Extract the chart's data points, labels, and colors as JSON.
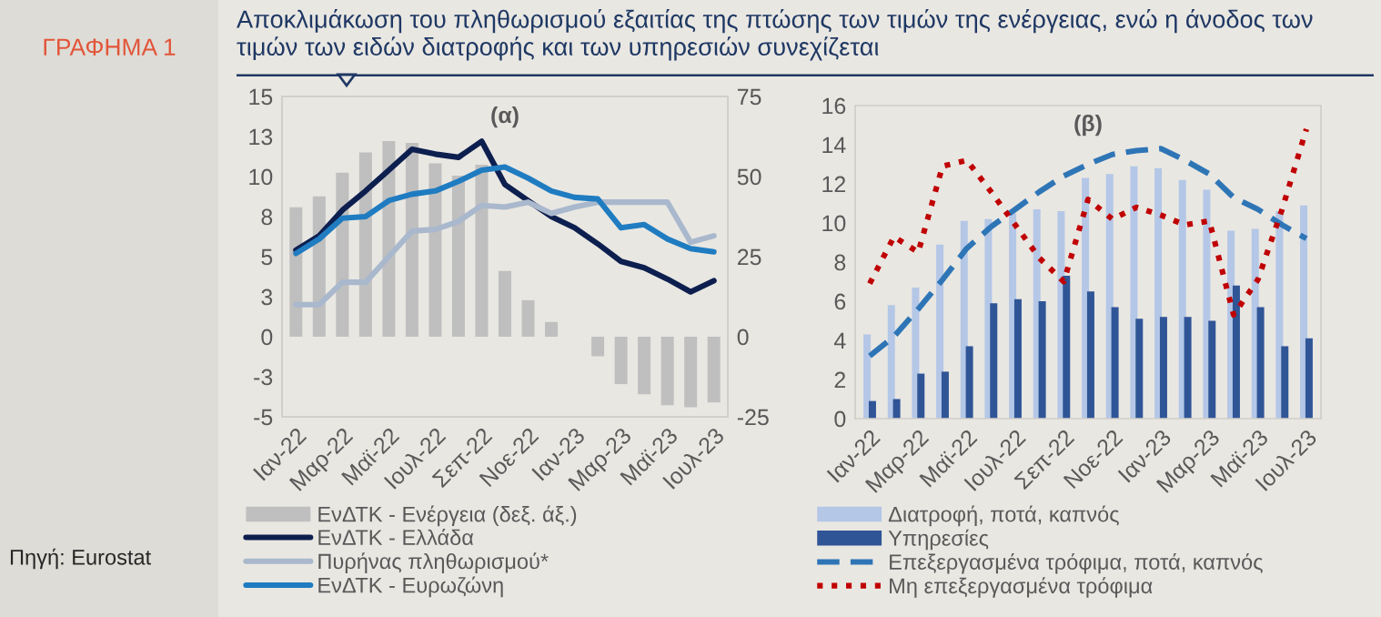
{
  "chart_data": [
    {
      "type": "line",
      "title": "(α)",
      "annotations": [
        "ΓΡΑΦΗΜΑ 1",
        "Αποκλιμάκωση του πληθωρισμού εξαιτίας της πτώσης των τιμών της ενέργειας, ενώ η άνοδος των τιμών των ειδών διατροφής και των υπηρεσιών συνεχίζεται",
        "Πηγή: Eurostat"
      ],
      "categories": [
        "Ιαν-22",
        null,
        "Μαρ-22",
        null,
        "Μαϊ-22",
        null,
        "Ιουλ-22",
        null,
        "Σεπ-22",
        null,
        "Νοε-22",
        null,
        "Ιαν-23",
        null,
        "Μαρ-23",
        null,
        "Μαϊ-23",
        null,
        "Ιουλ-23"
      ],
      "series": [
        {
          "name": "ΕνΔΤΚ - Ενέργεια (δεξ. άξ.)",
          "type": "bar",
          "axis": "y2",
          "color": "#bfbfbf",
          "values": [
            40.4,
            43.8,
            51.2,
            57.5,
            61.1,
            60.5,
            54.1,
            50.3,
            53.7,
            20.5,
            11.4,
            4.6,
            null,
            -6.1,
            -14.8,
            -18.0,
            -21.4,
            -22.0,
            -20.5
          ]
        },
        {
          "name": "ΕνΔΤΚ - Ελλάδα",
          "color": "#0d1f4f",
          "values": [
            5.4,
            6.3,
            7.9,
            9.1,
            10.4,
            11.7,
            11.4,
            11.2,
            12.2,
            9.5,
            8.5,
            7.5,
            6.8,
            5.8,
            4.7,
            4.3,
            3.6,
            2.8,
            3.5
          ]
        },
        {
          "name": "Πυρήνας πληθωρισμού*",
          "color": "#a9b8cc",
          "values": [
            2.0,
            2.0,
            3.4,
            3.4,
            5.0,
            6.6,
            6.7,
            7.2,
            8.2,
            8.1,
            8.4,
            7.7,
            8.1,
            8.4,
            8.4,
            8.4,
            8.4,
            5.9,
            6.3
          ]
        },
        {
          "name": "ΕνΔΤΚ - Ευρωζώνη",
          "color": "#1f7cc1",
          "values": [
            5.2,
            6.1,
            7.4,
            7.5,
            8.5,
            8.9,
            9.1,
            9.7,
            10.4,
            10.6,
            9.9,
            9.1,
            8.7,
            8.6,
            6.8,
            7.0,
            6.1,
            5.5,
            5.3
          ]
        }
      ],
      "ylim": [
        -5,
        15
      ],
      "yticks": [
        {
          "value": -5,
          "label": "-5"
        },
        {
          "value": -2.5,
          "label": "-3"
        },
        0,
        {
          "value": 2.5,
          "label": "3"
        },
        5,
        {
          "value": 7.5,
          "label": "8"
        },
        10,
        {
          "value": 12.5,
          "label": "13"
        },
        15
      ],
      "y2lim": [
        -25,
        75
      ],
      "y2ticks": [
        -25,
        0,
        25,
        50,
        75
      ],
      "grid": false,
      "legend": "bottom",
      "line_style": "solid",
      "marker": "none"
    },
    {
      "type": "bar",
      "title": "(β)",
      "categories": [
        "Ιαν-22",
        null,
        "Μαρ-22",
        null,
        "Μαϊ-22",
        null,
        "Ιουλ-22",
        null,
        "Σεπ-22",
        null,
        "Νοε-22",
        null,
        "Ιαν-23",
        null,
        "Μαρ-23",
        null,
        "Μαϊ-23",
        null,
        "Ιουλ-23"
      ],
      "series": [
        {
          "name": "Διατροφή, ποτά, καπνός",
          "color": "#b4c7e7",
          "values": [
            4.3,
            5.8,
            6.7,
            8.9,
            10.1,
            10.2,
            10.5,
            10.7,
            10.6,
            12.3,
            12.5,
            12.9,
            12.8,
            12.2,
            11.7,
            9.6,
            9.7,
            10.6,
            10.9
          ]
        },
        {
          "name": "Υπηρεσίες",
          "color": "#2f5597",
          "values": [
            0.9,
            1.0,
            2.3,
            2.4,
            3.7,
            5.9,
            6.1,
            6.0,
            7.3,
            6.5,
            5.7,
            5.1,
            5.2,
            5.2,
            5.0,
            6.8,
            5.7,
            3.7,
            4.1
          ]
        },
        {
          "name": "Επεξεργασμένα τρόφιμα, ποτά, καπνός",
          "type": "line",
          "line_style": "dashed",
          "color": "#2e75b6",
          "values": [
            3.2,
            4.2,
            5.6,
            7.1,
            8.7,
            9.8,
            10.7,
            11.6,
            12.4,
            13.0,
            13.5,
            13.7,
            13.8,
            13.2,
            12.5,
            11.3,
            10.7,
            9.9,
            9.2
          ]
        },
        {
          "name": "Μη επεξεργασμένα τρόφιμα",
          "type": "line",
          "line_style": "dotted",
          "color": "#c00000",
          "values": [
            6.9,
            9.3,
            8.5,
            12.9,
            13.2,
            11.6,
            9.9,
            8.2,
            7.0,
            11.2,
            10.2,
            10.8,
            10.4,
            9.9,
            10.1,
            5.3,
            7.1,
            10.7,
            14.8
          ]
        }
      ],
      "ylim": [
        0,
        16
      ],
      "yticks": [
        0,
        2,
        4,
        6,
        8,
        10,
        12,
        14,
        16
      ],
      "grid": false,
      "legend": "bottom",
      "marker": "none"
    }
  ]
}
